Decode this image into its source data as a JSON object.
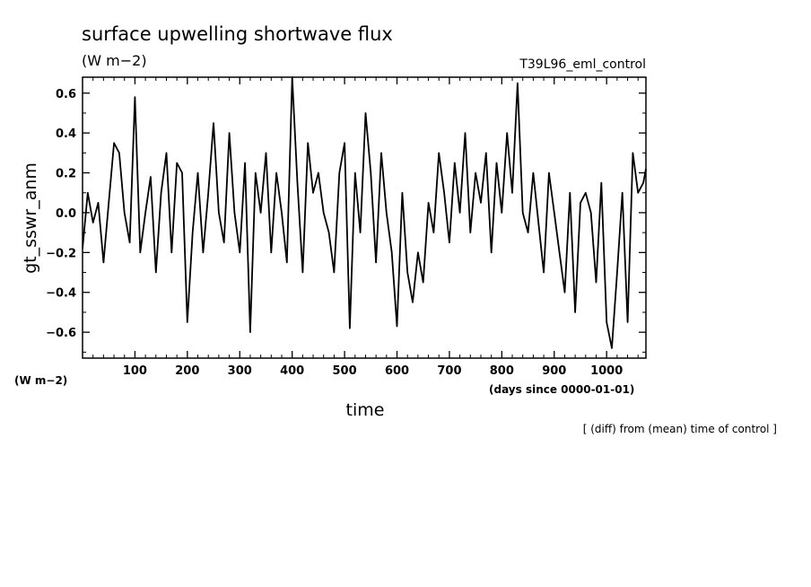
{
  "chart_data": {
    "type": "line",
    "title": "surface upwelling shortwave flux",
    "subtitle": "(W m−2)",
    "experiment": "T39L96_eml_control",
    "xlabel": "time",
    "xunits": "(days since 0000-01-01)",
    "ylabel": "gt_sswr_anm",
    "yunits": "(W m−2)",
    "note": "[ (diff) from (mean) time of control ]",
    "xlim": [
      0,
      1075
    ],
    "ylim": [
      -0.73,
      0.68
    ],
    "x_ticks": [
      100,
      200,
      300,
      400,
      500,
      600,
      700,
      800,
      900,
      1000
    ],
    "y_ticks": [
      -0.6,
      -0.4,
      -0.2,
      0.0,
      0.2,
      0.4,
      0.6
    ],
    "x_tick_labels": [
      "100",
      "200",
      "300",
      "400",
      "500",
      "600",
      "700",
      "800",
      "900",
      "1000"
    ],
    "y_tick_labels": [
      "−0.6",
      "−0.4",
      "−0.2",
      "0.0",
      "0.2",
      "0.4",
      "0.6"
    ],
    "series": [
      {
        "name": "gt_sswr_anm",
        "x": [
          0,
          10,
          20,
          30,
          40,
          50,
          60,
          70,
          80,
          90,
          100,
          110,
          120,
          130,
          140,
          150,
          160,
          170,
          180,
          190,
          200,
          210,
          220,
          230,
          240,
          250,
          260,
          270,
          280,
          290,
          300,
          310,
          320,
          330,
          340,
          350,
          360,
          370,
          380,
          390,
          400,
          410,
          420,
          430,
          440,
          450,
          460,
          470,
          480,
          490,
          500,
          510,
          520,
          530,
          540,
          550,
          560,
          570,
          580,
          590,
          600,
          610,
          620,
          630,
          640,
          650,
          660,
          670,
          680,
          690,
          700,
          710,
          720,
          730,
          740,
          750,
          760,
          770,
          780,
          790,
          800,
          810,
          820,
          830,
          840,
          850,
          860,
          870,
          880,
          890,
          900,
          910,
          920,
          930,
          940,
          950,
          960,
          970,
          980,
          990,
          1000,
          1010,
          1020,
          1030,
          1040,
          1050,
          1060,
          1070,
          1075
        ],
        "values": [
          -0.18,
          0.1,
          -0.05,
          0.05,
          -0.25,
          0.05,
          0.35,
          0.3,
          0.0,
          -0.15,
          0.58,
          -0.2,
          0.0,
          0.18,
          -0.3,
          0.1,
          0.3,
          -0.2,
          0.25,
          0.2,
          -0.55,
          -0.1,
          0.2,
          -0.2,
          0.1,
          0.45,
          0.0,
          -0.15,
          0.4,
          0.0,
          -0.2,
          0.25,
          -0.6,
          0.2,
          0.0,
          0.3,
          -0.2,
          0.2,
          0.0,
          -0.25,
          0.68,
          0.15,
          -0.3,
          0.35,
          0.1,
          0.2,
          0.0,
          -0.1,
          -0.3,
          0.2,
          0.35,
          -0.58,
          0.2,
          -0.1,
          0.5,
          0.2,
          -0.25,
          0.3,
          0.0,
          -0.2,
          -0.57,
          0.1,
          -0.3,
          -0.45,
          -0.2,
          -0.35,
          0.05,
          -0.1,
          0.3,
          0.1,
          -0.15,
          0.25,
          0.0,
          0.4,
          -0.1,
          0.2,
          0.05,
          0.3,
          -0.2,
          0.25,
          0.0,
          0.4,
          0.1,
          0.65,
          0.0,
          -0.1,
          0.2,
          -0.05,
          -0.3,
          0.2,
          0.0,
          -0.2,
          -0.4,
          0.1,
          -0.5,
          0.05,
          0.1,
          0.0,
          -0.35,
          0.15,
          -0.55,
          -0.68,
          -0.3,
          0.1,
          -0.55,
          0.3,
          0.1,
          0.15,
          0.22
        ]
      }
    ]
  }
}
